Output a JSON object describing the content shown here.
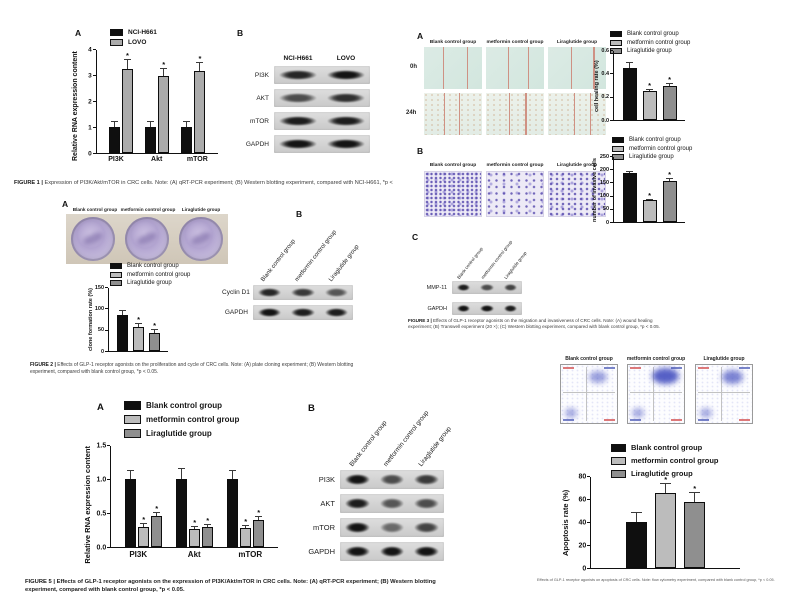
{
  "groups": {
    "blank": "Blank control group",
    "metformin": "metformin control group",
    "liraglutide": "Liraglutide group"
  },
  "figure1": {
    "panel_a": "A",
    "panel_b": "B",
    "blot_col1": "NCI-H661",
    "blot_col2": "LOVO",
    "caption_bold": "FIGURE 1 |",
    "caption_rest": " Expression of PI3K/Akt/mTOR in CRC cells. Note: (A) qRT-PCR experiment; (B) Western blotting experiment, compared with NCI-H661, *p <"
  },
  "figure2": {
    "panel_a": "A",
    "panel_b": "B",
    "caption_bold": "FIGURE 2 |",
    "caption_rest": " Effects of GLP-1 receptor agonists on the proliferation and cycle of CRC cells. Note: (A) plate cloning experiment; (B) Western blotting experiment, compared with blank control group, *p < 0.05."
  },
  "figure3": {
    "panel_a": "A",
    "panel_b": "B",
    "panel_c": "C",
    "row_0h": "0h",
    "row_24h": "24h",
    "caption_bold": "FIGURE 3 |",
    "caption_rest": " Effects of GLP-1 receptor agonists on the migration and invasiveness of CRC cells. Note: (A) wound healing experiment; (B) Transwell experiment (20 ×); (C) Western blotting experiment, compared with blank control group, *p < 0.05."
  },
  "figure5": {
    "panel_a": "A",
    "panel_b": "B",
    "caption_bold": "FIGURE 5 |",
    "caption_rest": " Effects of GLP-1 receptor agonists on the expression of PI3K/Akt/mTOR in CRC cells. Note: (A) qRT-PCR experiment; (B) Western blotting experiment, compared with blank control group, *p < 0.05."
  },
  "apoptosis_caption": "Effects of GLP-1 receptor agonists on apoptosis of CRC cells. Note: flow cytometry experiment, compared with blank control group, *p < 0.05.",
  "blots": {
    "fig1b": {
      "columns": true,
      "rows": [
        {
          "label": "PI3K",
          "bands": [
            0.9,
            1
          ]
        },
        {
          "label": "AKT",
          "bands": [
            0.7,
            0.85
          ]
        },
        {
          "label": "mTOR",
          "bands": [
            0.95,
            0.95
          ]
        },
        {
          "label": "GAPDH",
          "bands": [
            1,
            1
          ]
        }
      ]
    },
    "fig2b": {
      "rows": [
        {
          "label": "Cyclin D1",
          "bands": [
            0.9,
            0.8,
            0.65
          ]
        },
        {
          "label": "GAPDH",
          "bands": [
            1,
            0.95,
            0.95
          ]
        }
      ]
    },
    "fig3c": {
      "rows": [
        {
          "label": "MMP-11",
          "bands": [
            0.95,
            0.7,
            0.75
          ]
        },
        {
          "label": "GAPDH",
          "bands": [
            1,
            1,
            0.95
          ]
        }
      ]
    },
    "fig5b": {
      "rows": [
        {
          "label": "PI3K",
          "bands": [
            1,
            0.7,
            0.8
          ]
        },
        {
          "label": "AKT",
          "bands": [
            0.95,
            0.65,
            0.7
          ]
        },
        {
          "label": "mTOR",
          "bands": [
            1,
            0.55,
            0.75
          ]
        },
        {
          "label": "GAPDH",
          "bands": [
            1,
            1,
            1
          ]
        }
      ]
    }
  },
  "chart_data": [
    {
      "id": "fig1a",
      "type": "bar",
      "title": "",
      "ylabel": "Relative RNA expression content",
      "ylim": [
        0,
        4
      ],
      "yticks": [
        "0",
        "1",
        "2",
        "3",
        "4"
      ],
      "categories": [
        "PI3K",
        "Akt",
        "mTOR"
      ],
      "legend_position": "top-left",
      "grid": false,
      "series": [
        {
          "name": "NCI-H661",
          "color": "#0f0f0f",
          "values": [
            1.0,
            1.0,
            1.0
          ],
          "errors": [
            0.25,
            0.25,
            0.22
          ],
          "sig": [
            false,
            false,
            false
          ]
        },
        {
          "name": "LOVO",
          "color": "#ababab",
          "values": [
            3.25,
            2.95,
            3.15
          ],
          "errors": [
            0.35,
            0.32,
            0.35
          ],
          "sig": [
            true,
            true,
            true
          ]
        }
      ]
    },
    {
      "id": "fig2a",
      "type": "bar",
      "title": "",
      "ylabel": "clone formation rate (%)",
      "ylim": [
        0,
        150
      ],
      "yticks": [
        "0",
        "50",
        "100",
        "150"
      ],
      "categories": [
        ""
      ],
      "legend_position": "top",
      "grid": false,
      "series": [
        {
          "name": "Blank control group",
          "color": "#0f0f0f",
          "values": [
            85
          ],
          "errors": [
            11
          ],
          "sig": [
            false
          ]
        },
        {
          "name": "metformin control group",
          "color": "#bcbcbc",
          "values": [
            57
          ],
          "errors": [
            9
          ],
          "sig": [
            true
          ]
        },
        {
          "name": "Liraglutide group",
          "color": "#8f8f8f",
          "values": [
            43
          ],
          "errors": [
            9
          ],
          "sig": [
            true
          ]
        }
      ]
    },
    {
      "id": "fig3a",
      "type": "bar",
      "title": "",
      "ylabel": "cell healing rate (%)",
      "ylim": [
        0,
        0.6
      ],
      "yticks": [
        "0.0",
        "0.2",
        "0.4",
        "0.6"
      ],
      "categories": [
        ""
      ],
      "legend_position": "top",
      "grid": false,
      "series": [
        {
          "name": "Blank control group",
          "color": "#0f0f0f",
          "values": [
            0.45
          ],
          "errors": [
            0.05
          ],
          "sig": [
            false
          ]
        },
        {
          "name": "metformin control group",
          "color": "#bcbcbc",
          "values": [
            0.25
          ],
          "errors": [
            0.02
          ],
          "sig": [
            true
          ]
        },
        {
          "name": "Liraglutide group",
          "color": "#8f8f8f",
          "values": [
            0.29
          ],
          "errors": [
            0.03
          ],
          "sig": [
            true
          ]
        }
      ]
    },
    {
      "id": "fig3b",
      "type": "bar",
      "title": "",
      "ylabel": "number of invasive cells",
      "ylim": [
        0,
        250
      ],
      "yticks": [
        "0",
        "50",
        "100",
        "150",
        "200",
        "250"
      ],
      "categories": [
        ""
      ],
      "legend_position": "top",
      "grid": false,
      "series": [
        {
          "name": "Blank control group",
          "color": "#0f0f0f",
          "values": [
            185
          ],
          "errors": [
            8
          ],
          "sig": [
            false
          ]
        },
        {
          "name": "metformin control group",
          "color": "#bcbcbc",
          "values": [
            82
          ],
          "errors": [
            7
          ],
          "sig": [
            true
          ]
        },
        {
          "name": "Liraglutide group",
          "color": "#8f8f8f",
          "values": [
            157
          ],
          "errors": [
            8
          ],
          "sig": [
            true
          ]
        }
      ]
    },
    {
      "id": "fig5a",
      "type": "bar",
      "title": "",
      "ylabel": "Relative RNA expression content",
      "ylim": [
        0,
        1.5
      ],
      "yticks": [
        "0.0",
        "0.5",
        "1.0",
        "1.5"
      ],
      "categories": [
        "PI3K",
        "Akt",
        "mTOR"
      ],
      "legend_position": "top-left",
      "grid": false,
      "series": [
        {
          "name": "Blank control group",
          "color": "#0f0f0f",
          "values": [
            1.0,
            1.0,
            1.0
          ],
          "errors": [
            0.13,
            0.16,
            0.13
          ],
          "sig": [
            false,
            false,
            false
          ]
        },
        {
          "name": "metformin control group",
          "color": "#bcbcbc",
          "values": [
            0.3,
            0.27,
            0.28
          ],
          "errors": [
            0.05,
            0.04,
            0.04
          ],
          "sig": [
            true,
            true,
            true
          ]
        },
        {
          "name": "Liraglutide group",
          "color": "#8f8f8f",
          "values": [
            0.45,
            0.3,
            0.4
          ],
          "errors": [
            0.07,
            0.04,
            0.05
          ],
          "sig": [
            true,
            true,
            true
          ]
        }
      ]
    },
    {
      "id": "apop",
      "type": "bar",
      "title": "",
      "ylabel": "Apoptosis rate (%)",
      "ylim": [
        0,
        80
      ],
      "yticks": [
        "0",
        "20",
        "40",
        "60",
        "80"
      ],
      "categories": [
        ""
      ],
      "legend_position": "top",
      "grid": false,
      "series": [
        {
          "name": "Blank control group",
          "color": "#0f0f0f",
          "values": [
            40
          ],
          "errors": [
            9
          ],
          "sig": [
            false
          ]
        },
        {
          "name": "metformin control group",
          "color": "#bcbcbc",
          "values": [
            65
          ],
          "errors": [
            9
          ],
          "sig": [
            true
          ]
        },
        {
          "name": "Liraglutide group",
          "color": "#8f8f8f",
          "values": [
            57
          ],
          "errors": [
            9
          ],
          "sig": [
            true
          ]
        }
      ]
    }
  ]
}
